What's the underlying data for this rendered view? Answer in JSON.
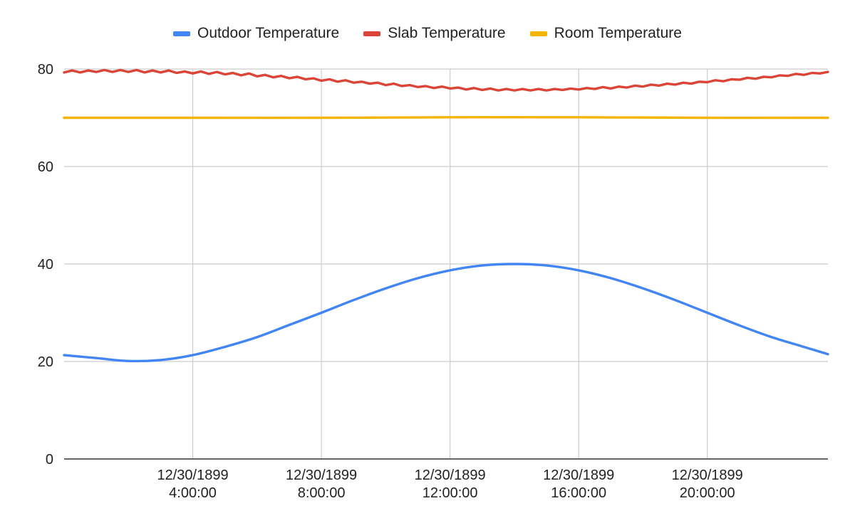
{
  "chart_data": {
    "type": "line",
    "title": "",
    "xlabel": "",
    "ylabel": "",
    "x_axis": {
      "min_hours": 0,
      "max_hours": 23.75,
      "ticks": [
        {
          "hours": 4,
          "line1": "12/30/1899",
          "line2": "4:00:00"
        },
        {
          "hours": 8,
          "line1": "12/30/1899",
          "line2": "8:00:00"
        },
        {
          "hours": 12,
          "line1": "12/30/1899",
          "line2": "12:00:00"
        },
        {
          "hours": 16,
          "line1": "12/30/1899",
          "line2": "16:00:00"
        },
        {
          "hours": 20,
          "line1": "12/30/1899",
          "line2": "20:00:00"
        }
      ]
    },
    "y_axis": {
      "min": 0,
      "max": 80,
      "ticks": [
        0,
        20,
        40,
        60,
        80
      ]
    },
    "grid": true,
    "legend_position": "top",
    "series": [
      {
        "name": "Outdoor Temperature",
        "color": "#4285F4",
        "x_hours": [
          0,
          1,
          2,
          3,
          4,
          5,
          6,
          7,
          8,
          9,
          10,
          11,
          12,
          13,
          14,
          15,
          16,
          17,
          18,
          19,
          20,
          21,
          22,
          23,
          23.75
        ],
        "values": [
          21.3,
          20.7,
          20.1,
          20.3,
          21.3,
          23.0,
          25.0,
          27.5,
          30.0,
          32.6,
          35.0,
          37.1,
          38.7,
          39.7,
          40.0,
          39.7,
          38.7,
          37.1,
          35.0,
          32.6,
          30.0,
          27.4,
          25.0,
          23.0,
          21.5
        ]
      },
      {
        "name": "Slab Temperature",
        "color": "#DB4437",
        "x_hours": [
          0,
          0.25,
          0.5,
          0.75,
          1,
          1.25,
          1.5,
          1.75,
          2,
          2.25,
          2.5,
          2.75,
          3,
          3.25,
          3.5,
          3.75,
          4,
          4.25,
          4.5,
          4.75,
          5,
          5.25,
          5.5,
          5.75,
          6,
          6.25,
          6.5,
          6.75,
          7,
          7.25,
          7.5,
          7.75,
          8,
          8.25,
          8.5,
          8.75,
          9,
          9.25,
          9.5,
          9.75,
          10,
          10.25,
          10.5,
          10.75,
          11,
          11.25,
          11.5,
          11.75,
          12,
          12.25,
          12.5,
          12.75,
          13,
          13.25,
          13.5,
          13.75,
          14,
          14.25,
          14.5,
          14.75,
          15,
          15.25,
          15.5,
          15.75,
          16,
          16.25,
          16.5,
          16.75,
          17,
          17.25,
          17.5,
          17.75,
          18,
          18.25,
          18.5,
          18.75,
          19,
          19.25,
          19.5,
          19.75,
          20,
          20.25,
          20.5,
          20.75,
          21,
          21.25,
          21.5,
          21.75,
          22,
          22.25,
          22.5,
          22.75,
          23,
          23.25,
          23.5,
          23.75
        ],
        "values": [
          79.3,
          79.7,
          79.3,
          79.7,
          79.4,
          79.8,
          79.4,
          79.8,
          79.4,
          79.8,
          79.3,
          79.7,
          79.3,
          79.7,
          79.2,
          79.5,
          79.1,
          79.5,
          79.0,
          79.4,
          78.9,
          79.2,
          78.7,
          79.1,
          78.5,
          78.8,
          78.3,
          78.6,
          78.1,
          78.4,
          77.9,
          78.1,
          77.6,
          77.9,
          77.4,
          77.7,
          77.2,
          77.4,
          77.0,
          77.2,
          76.7,
          77.0,
          76.5,
          76.7,
          76.3,
          76.5,
          76.1,
          76.4,
          76.0,
          76.2,
          75.8,
          76.1,
          75.7,
          76.0,
          75.6,
          75.9,
          75.6,
          75.9,
          75.6,
          75.9,
          75.6,
          75.9,
          75.7,
          76.0,
          75.8,
          76.1,
          75.9,
          76.3,
          76.0,
          76.4,
          76.2,
          76.6,
          76.4,
          76.8,
          76.6,
          77.0,
          76.8,
          77.2,
          77.0,
          77.4,
          77.3,
          77.7,
          77.5,
          77.9,
          77.8,
          78.2,
          78.0,
          78.4,
          78.3,
          78.7,
          78.6,
          79.0,
          78.8,
          79.2,
          79.1,
          79.4
        ]
      },
      {
        "name": "Room Temperature",
        "color": "#F4B400",
        "x_hours": [
          0,
          4,
          8,
          12,
          16,
          20,
          23.75
        ],
        "values": [
          70.0,
          70.0,
          70.0,
          70.1,
          70.1,
          70.0,
          70.0
        ]
      }
    ]
  }
}
